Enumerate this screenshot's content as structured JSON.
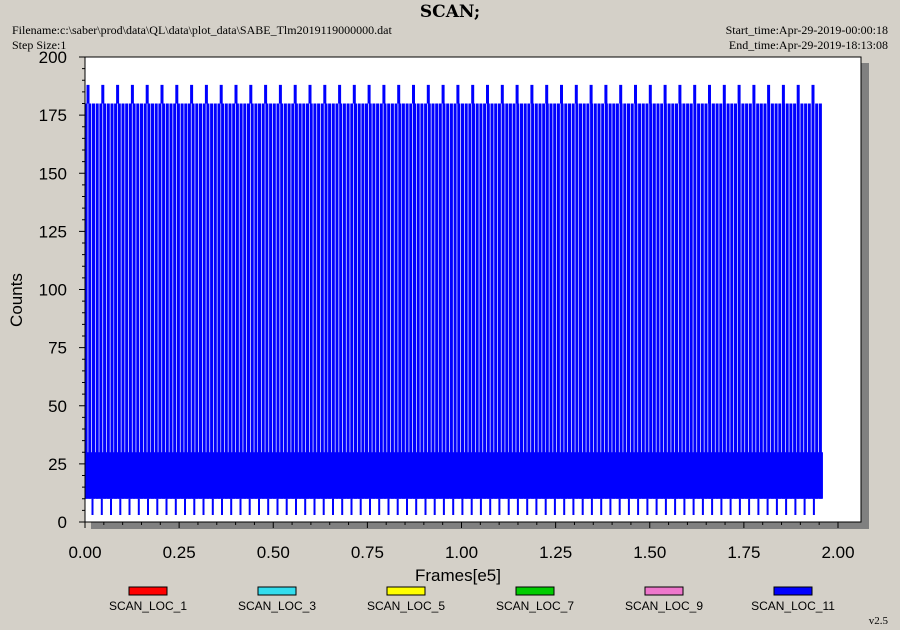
{
  "chart_data": {
    "type": "line",
    "title": "SCAN;",
    "header": {
      "filename": "Filename:c:\\saber\\prod\\data\\QL\\data\\plot_data\\SABE_Tlm2019119000000.dat",
      "step_size": "Step Size:1",
      "start_time": "Start_time:Apr-29-2019-00:00:18",
      "end_time": "End_time:Apr-29-2019-18:13:08"
    },
    "xlabel": "Frames[e5]",
    "ylabel": "Counts",
    "xlim": [
      0,
      2.0
    ],
    "ylim": [
      0,
      200
    ],
    "x_ticks": [
      "0.00",
      "0.25",
      "0.50",
      "0.75",
      "1.00",
      "1.25",
      "1.50",
      "1.75",
      "2.00"
    ],
    "y_ticks": [
      "0",
      "25",
      "50",
      "75",
      "100",
      "125",
      "150",
      "175",
      "200"
    ],
    "grid": false,
    "legend_position": "bottom",
    "series": [
      {
        "name": "SCAN_LOC_1",
        "color": "#ff0000"
      },
      {
        "name": "SCAN_LOC_3",
        "color": "#33ddee"
      },
      {
        "name": "SCAN_LOC_5",
        "color": "#ffff00"
      },
      {
        "name": "SCAN_LOC_7",
        "color": "#00cc00"
      },
      {
        "name": "SCAN_LOC_9",
        "color": "#ee77cc"
      },
      {
        "name": "SCAN_LOC_11",
        "color": "#0000ff",
        "pattern": {
          "x_range": [
            0.0,
            1.96
          ],
          "scan_max": 180,
          "scan_peak_max": 188,
          "base_low": 10,
          "base_high": 30,
          "scan_min": 3,
          "peak_spacing": 0.0393,
          "step_spacing": 0.0098
        }
      }
    ]
  },
  "version": "v2.5"
}
